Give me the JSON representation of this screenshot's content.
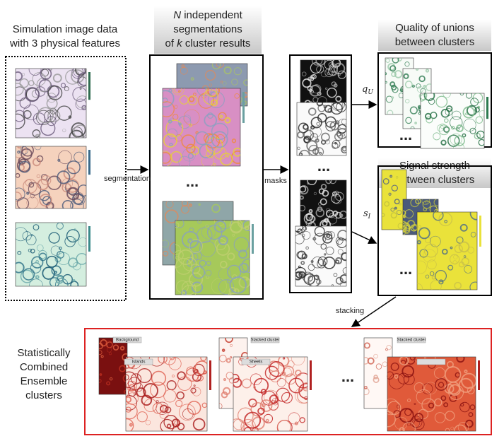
{
  "headers": {
    "simulation": [
      "Simulation image data",
      "with 3 physical features"
    ],
    "segmentation": {
      "n": "N",
      "line1": "independent",
      "line2": "segmentations",
      "of": "of",
      "k": "k",
      "line3": "cluster results"
    },
    "quality": [
      "Quality of unions",
      "between clusters"
    ],
    "signal": [
      "Signal strength",
      "between clusters"
    ]
  },
  "arrows": {
    "segmentation": "segmentation",
    "masks": "masks",
    "q": "q",
    "q_sub": "U",
    "s": "s",
    "s_sub": "I",
    "stacking": "stacking"
  },
  "ellipses": [
    "...",
    "...",
    "...",
    "...",
    "..."
  ],
  "result": {
    "title": [
      "Statistically",
      "Combined",
      "Ensemble",
      "clusters"
    ],
    "labels": [
      "Background",
      "Islands",
      "Stacked cluster",
      "Sheets",
      "Stacked cluster"
    ]
  }
}
